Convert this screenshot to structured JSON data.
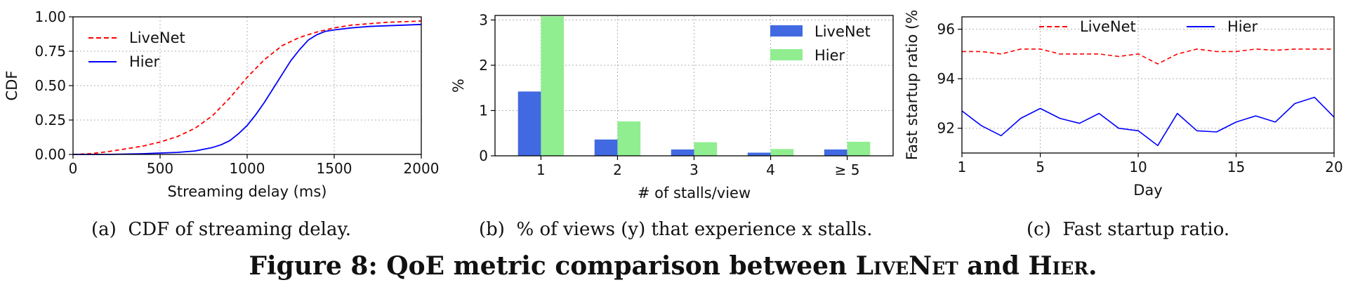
{
  "chart_data": [
    {
      "type": "line",
      "xlabel": "Streaming delay (ms)",
      "ylabel": "CDF",
      "xlim": [
        0,
        2000
      ],
      "ylim": [
        0,
        1
      ],
      "xticks": [
        "0",
        "500",
        "1000",
        "1500",
        "2000"
      ],
      "yticks": [
        "0.00",
        "0.25",
        "0.50",
        "0.75",
        "1.00"
      ],
      "grid": true,
      "legend": "top-left",
      "series": [
        {
          "name": "LiveNet",
          "color": "#ff0000",
          "dash": "dashed",
          "x": [
            0,
            100,
            200,
            300,
            400,
            500,
            600,
            700,
            800,
            900,
            1000,
            1100,
            1200,
            1300,
            1400,
            1500,
            1600,
            1700,
            1800,
            1900,
            2000
          ],
          "y": [
            0.0,
            0.005,
            0.02,
            0.04,
            0.06,
            0.09,
            0.13,
            0.19,
            0.28,
            0.41,
            0.56,
            0.69,
            0.79,
            0.85,
            0.89,
            0.92,
            0.94,
            0.95,
            0.96,
            0.965,
            0.97
          ]
        },
        {
          "name": "Hier",
          "color": "#0000ff",
          "dash": "solid",
          "x": [
            0,
            200,
            400,
            500,
            600,
            700,
            800,
            850,
            900,
            950,
            1000,
            1050,
            1100,
            1150,
            1200,
            1250,
            1300,
            1350,
            1400,
            1450,
            1500,
            1600,
            1700,
            1800,
            1900,
            2000
          ],
          "y": [
            0.0,
            0.0,
            0.005,
            0.01,
            0.015,
            0.025,
            0.05,
            0.07,
            0.1,
            0.15,
            0.21,
            0.29,
            0.38,
            0.48,
            0.58,
            0.68,
            0.76,
            0.83,
            0.87,
            0.895,
            0.905,
            0.92,
            0.93,
            0.935,
            0.94,
            0.945
          ]
        }
      ]
    },
    {
      "type": "bar",
      "xlabel": "# of stalls/view",
      "ylabel": "%",
      "categories": [
        "1",
        "2",
        "3",
        "4",
        "≥ 5"
      ],
      "ylim": [
        0,
        3.1
      ],
      "yticks": [
        "0",
        "1",
        "2",
        "3"
      ],
      "grid": true,
      "legend": "top-right",
      "series": [
        {
          "name": "LiveNet",
          "color": "#4169e1",
          "values": [
            1.42,
            0.36,
            0.14,
            0.07,
            0.14
          ]
        },
        {
          "name": "Hier",
          "color": "#90ee90",
          "values": [
            3.08,
            0.76,
            0.3,
            0.15,
            0.31
          ]
        }
      ]
    },
    {
      "type": "line",
      "xlabel": "Day",
      "ylabel": "Fast startup ratio (%",
      "xlim": [
        1,
        20
      ],
      "ylim": [
        91,
        96.5
      ],
      "xticks": [
        "1",
        "5",
        "10",
        "15",
        "20"
      ],
      "yticks": [
        "92",
        "94",
        "96"
      ],
      "grid": true,
      "legend": "top",
      "series": [
        {
          "name": "LiveNet",
          "color": "#ff0000",
          "dash": "dashed",
          "x": [
            1,
            2,
            3,
            4,
            5,
            6,
            7,
            8,
            9,
            10,
            11,
            12,
            13,
            14,
            15,
            16,
            17,
            18,
            19,
            20
          ],
          "y": [
            95.1,
            95.1,
            95.0,
            95.2,
            95.2,
            95.0,
            95.0,
            95.0,
            94.9,
            95.0,
            94.6,
            95.0,
            95.2,
            95.1,
            95.1,
            95.2,
            95.15,
            95.2,
            95.2,
            95.2
          ]
        },
        {
          "name": "Hier",
          "color": "#0000ff",
          "dash": "solid",
          "x": [
            1,
            2,
            3,
            4,
            5,
            6,
            7,
            8,
            9,
            10,
            11,
            12,
            13,
            14,
            15,
            16,
            17,
            18,
            19,
            20
          ],
          "y": [
            92.7,
            92.1,
            91.7,
            92.4,
            92.8,
            92.4,
            92.2,
            92.6,
            92.0,
            91.9,
            91.3,
            92.6,
            91.9,
            91.85,
            92.25,
            92.5,
            92.25,
            93.0,
            93.25,
            92.45
          ]
        }
      ]
    }
  ],
  "captions": {
    "a_label": "(a)",
    "a_text": "CDF of streaming delay.",
    "b_label": "(b)",
    "b_text": "% of views (y) that experience x stalls.",
    "c_label": "(c)",
    "c_text": "Fast startup ratio.",
    "figure": {
      "prefix": "Figure 8: QoE metric comparison between ",
      "name1": "LiveNet",
      "mid": " and ",
      "name2": "Hier",
      "suffix": "."
    }
  }
}
